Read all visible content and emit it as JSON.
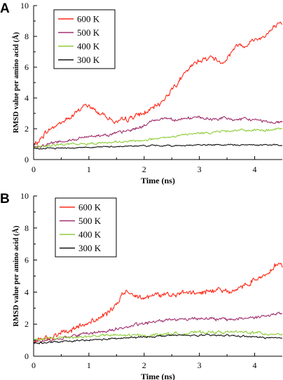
{
  "chart_data": [
    {
      "type": "line",
      "panel": "A",
      "xlabel": "Time (ns)",
      "ylabel": "RMSD value per amino acid (Å)",
      "xlim": [
        0,
        4.5
      ],
      "ylim": [
        0,
        10
      ],
      "xticks": [
        "0",
        "1",
        "2",
        "3",
        "4"
      ],
      "yticks": [
        "0",
        "2",
        "4",
        "6",
        "8",
        "10"
      ],
      "legend_position": "top-left",
      "series": [
        {
          "name": "600 K",
          "color": "#ff2a1a",
          "x": [
            0,
            0.1,
            0.2,
            0.35,
            0.5,
            0.65,
            0.8,
            0.9,
            1.0,
            1.1,
            1.2,
            1.3,
            1.4,
            1.5,
            1.6,
            1.7,
            1.8,
            1.9,
            2.0,
            2.1,
            2.2,
            2.3,
            2.4,
            2.5,
            2.6,
            2.7,
            2.8,
            2.9,
            3.0,
            3.1,
            3.2,
            3.3,
            3.4,
            3.5,
            3.6,
            3.7,
            3.8,
            3.9,
            4.0,
            4.1,
            4.2,
            4.3,
            4.4,
            4.5
          ],
          "y": [
            0.9,
            1.2,
            1.7,
            2.1,
            2.4,
            2.7,
            3.1,
            3.5,
            3.5,
            3.2,
            3.0,
            2.9,
            2.6,
            2.4,
            2.5,
            2.6,
            2.8,
            2.9,
            3.0,
            3.2,
            3.4,
            3.7,
            4.1,
            4.6,
            5.0,
            5.4,
            5.8,
            6.2,
            6.5,
            6.5,
            6.7,
            6.5,
            6.3,
            6.6,
            7.1,
            7.5,
            7.4,
            7.6,
            7.8,
            7.9,
            8.1,
            8.4,
            8.7,
            8.7
          ]
        },
        {
          "name": "500 K",
          "color": "#a0306e",
          "x": [
            0,
            0.25,
            0.5,
            0.75,
            1.0,
            1.25,
            1.5,
            1.75,
            2.0,
            2.2,
            2.4,
            2.6,
            2.8,
            3.0,
            3.2,
            3.4,
            3.6,
            3.8,
            4.0,
            4.2,
            4.4,
            4.5
          ],
          "y": [
            0.8,
            1.0,
            1.2,
            1.3,
            1.5,
            1.6,
            1.7,
            1.9,
            2.2,
            2.6,
            2.7,
            2.6,
            2.7,
            2.7,
            2.6,
            2.7,
            2.6,
            2.6,
            2.6,
            2.5,
            2.4,
            2.5
          ]
        },
        {
          "name": "400 K",
          "color": "#8fce3a",
          "x": [
            0,
            0.3,
            0.6,
            0.9,
            1.2,
            1.5,
            1.8,
            2.1,
            2.4,
            2.7,
            3.0,
            3.3,
            3.6,
            3.9,
            4.2,
            4.5
          ],
          "y": [
            0.8,
            0.9,
            1.0,
            1.0,
            1.1,
            1.1,
            1.2,
            1.3,
            1.4,
            1.6,
            1.7,
            1.8,
            1.9,
            1.9,
            1.9,
            2.0
          ]
        },
        {
          "name": "300 K",
          "color": "#111111",
          "x": [
            0,
            0.5,
            1.0,
            1.5,
            2.0,
            2.5,
            3.0,
            3.5,
            4.0,
            4.5
          ],
          "y": [
            0.7,
            0.75,
            0.8,
            0.85,
            0.9,
            0.9,
            0.95,
            0.95,
            0.95,
            0.95
          ]
        }
      ]
    },
    {
      "type": "line",
      "panel": "B",
      "xlabel": "Time (ns)",
      "ylabel": "RMSD value per amino acid (Å)",
      "xlim": [
        0,
        4.5
      ],
      "ylim": [
        0,
        10
      ],
      "xticks": [
        "0",
        "1",
        "2",
        "3",
        "4"
      ],
      "yticks": [
        "0",
        "2",
        "4",
        "6",
        "8",
        "10"
      ],
      "legend_position": "top-left",
      "series": [
        {
          "name": "600 K",
          "color": "#ff2a1a",
          "x": [
            0,
            0.2,
            0.4,
            0.6,
            0.8,
            1.0,
            1.2,
            1.4,
            1.5,
            1.6,
            1.7,
            1.8,
            2.0,
            2.2,
            2.4,
            2.6,
            2.8,
            3.0,
            3.2,
            3.4,
            3.6,
            3.8,
            4.0,
            4.2,
            4.4,
            4.5
          ],
          "y": [
            0.9,
            1.1,
            1.3,
            1.5,
            1.8,
            2.1,
            2.4,
            2.8,
            3.3,
            3.8,
            4.0,
            3.9,
            3.7,
            3.8,
            3.9,
            3.8,
            4.0,
            3.9,
            4.1,
            4.2,
            4.0,
            4.4,
            4.8,
            5.1,
            5.8,
            5.6
          ]
        },
        {
          "name": "500 K",
          "color": "#a0306e",
          "x": [
            0,
            0.3,
            0.6,
            0.9,
            1.2,
            1.5,
            1.8,
            2.1,
            2.4,
            2.7,
            3.0,
            3.3,
            3.6,
            3.9,
            4.2,
            4.5
          ],
          "y": [
            0.9,
            1.0,
            1.2,
            1.4,
            1.5,
            1.7,
            1.9,
            2.1,
            2.3,
            2.3,
            2.4,
            2.3,
            2.3,
            2.4,
            2.5,
            2.7
          ]
        },
        {
          "name": "400 K",
          "color": "#8fce3a",
          "x": [
            0,
            0.3,
            0.6,
            0.9,
            1.2,
            1.5,
            1.8,
            2.1,
            2.4,
            2.7,
            3.0,
            3.3,
            3.6,
            3.9,
            4.2,
            4.5
          ],
          "y": [
            1.0,
            1.1,
            1.2,
            1.2,
            1.3,
            1.3,
            1.3,
            1.3,
            1.4,
            1.4,
            1.5,
            1.5,
            1.5,
            1.5,
            1.4,
            1.4
          ]
        },
        {
          "name": "300 K",
          "color": "#111111",
          "x": [
            0,
            0.5,
            1.0,
            1.5,
            2.0,
            2.5,
            3.0,
            3.5,
            4.0,
            4.5
          ],
          "y": [
            0.8,
            0.9,
            1.0,
            1.1,
            1.2,
            1.3,
            1.3,
            1.3,
            1.2,
            1.1
          ]
        }
      ]
    }
  ]
}
